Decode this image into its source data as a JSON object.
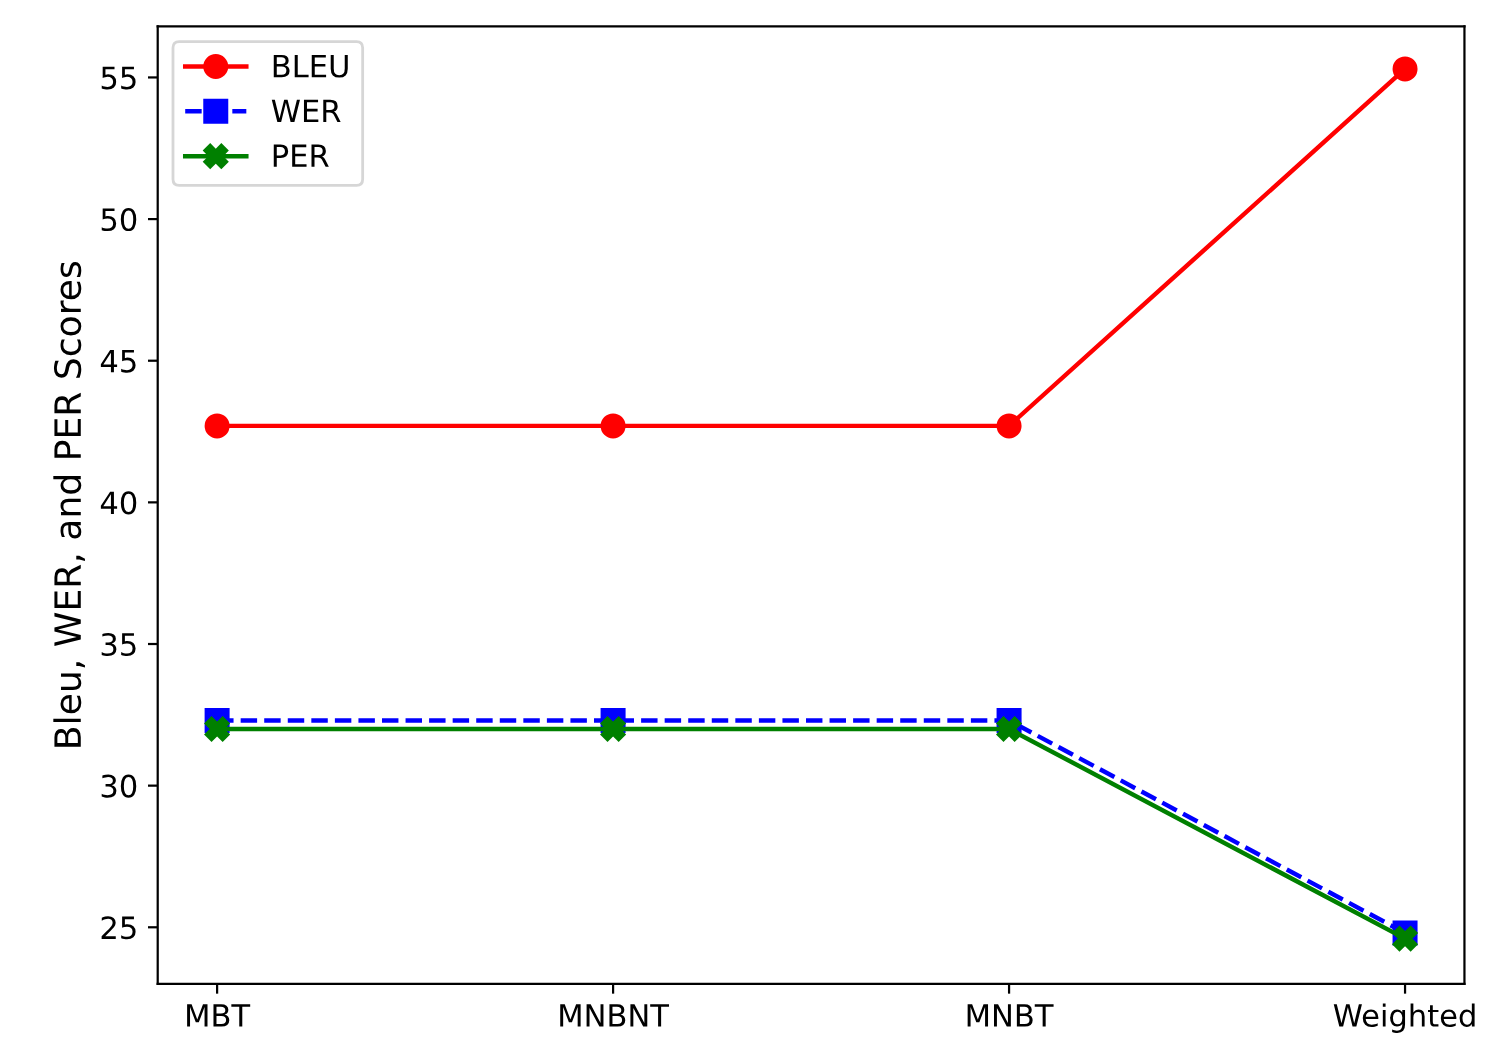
{
  "chart_data": {
    "type": "line",
    "ylabel": "Bleu, WER, and PER Scores",
    "categories": [
      "MBT",
      "MNBNT",
      "MNBT",
      "Weighted"
    ],
    "series": [
      {
        "name": "BLEU",
        "color": "#ff0000",
        "values": [
          42.7,
          42.7,
          42.7,
          55.3
        ],
        "marker": "circle",
        "line_style": "solid"
      },
      {
        "name": "WER",
        "color": "#0000ff",
        "values": [
          32.3,
          32.3,
          32.3,
          24.8
        ],
        "marker": "square",
        "line_style": "dashed"
      },
      {
        "name": "PER",
        "color": "#008000",
        "values": [
          32.0,
          32.0,
          32.0,
          24.6
        ],
        "marker": "cross",
        "line_style": "solid"
      }
    ],
    "ylim": [
      23.0,
      56.8
    ],
    "yticks": [
      25,
      30,
      35,
      40,
      45,
      50,
      55
    ],
    "grid": false,
    "legend": "top left"
  }
}
